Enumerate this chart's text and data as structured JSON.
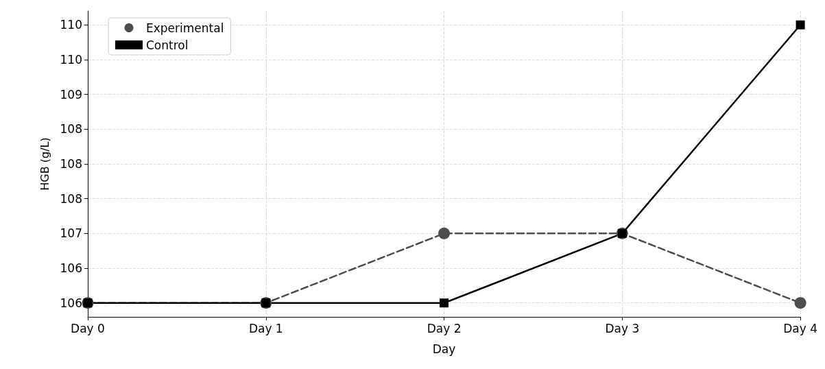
{
  "chart_data": {
    "type": "line",
    "xlabel": "Day",
    "ylabel": "HGB (g/L)",
    "categories": [
      "Day 0",
      "Day 1",
      "Day 2",
      "Day 3",
      "Day 4"
    ],
    "series": [
      {
        "name": "Experimental",
        "color": "#4d4d4d",
        "values": [
          106,
          106,
          107,
          107,
          106
        ],
        "marker": "circle",
        "line_style": "dashed"
      },
      {
        "name": "Control",
        "color": "#000000",
        "values": [
          106,
          106,
          106,
          107,
          110
        ],
        "marker": "square",
        "line_style": "solid"
      }
    ],
    "ylim": [
      105.8,
      110.2
    ],
    "yticks": [
      {
        "value": 106,
        "label": "106"
      },
      {
        "value": 106.5,
        "label": "106"
      },
      {
        "value": 107,
        "label": "107"
      },
      {
        "value": 107.5,
        "label": "108"
      },
      {
        "value": 108,
        "label": "108"
      },
      {
        "value": 108.5,
        "label": "108"
      },
      {
        "value": 109,
        "label": "109"
      },
      {
        "value": 109.5,
        "label": "110"
      },
      {
        "value": 110,
        "label": "110"
      }
    ],
    "grid": true,
    "legend": "top left"
  }
}
